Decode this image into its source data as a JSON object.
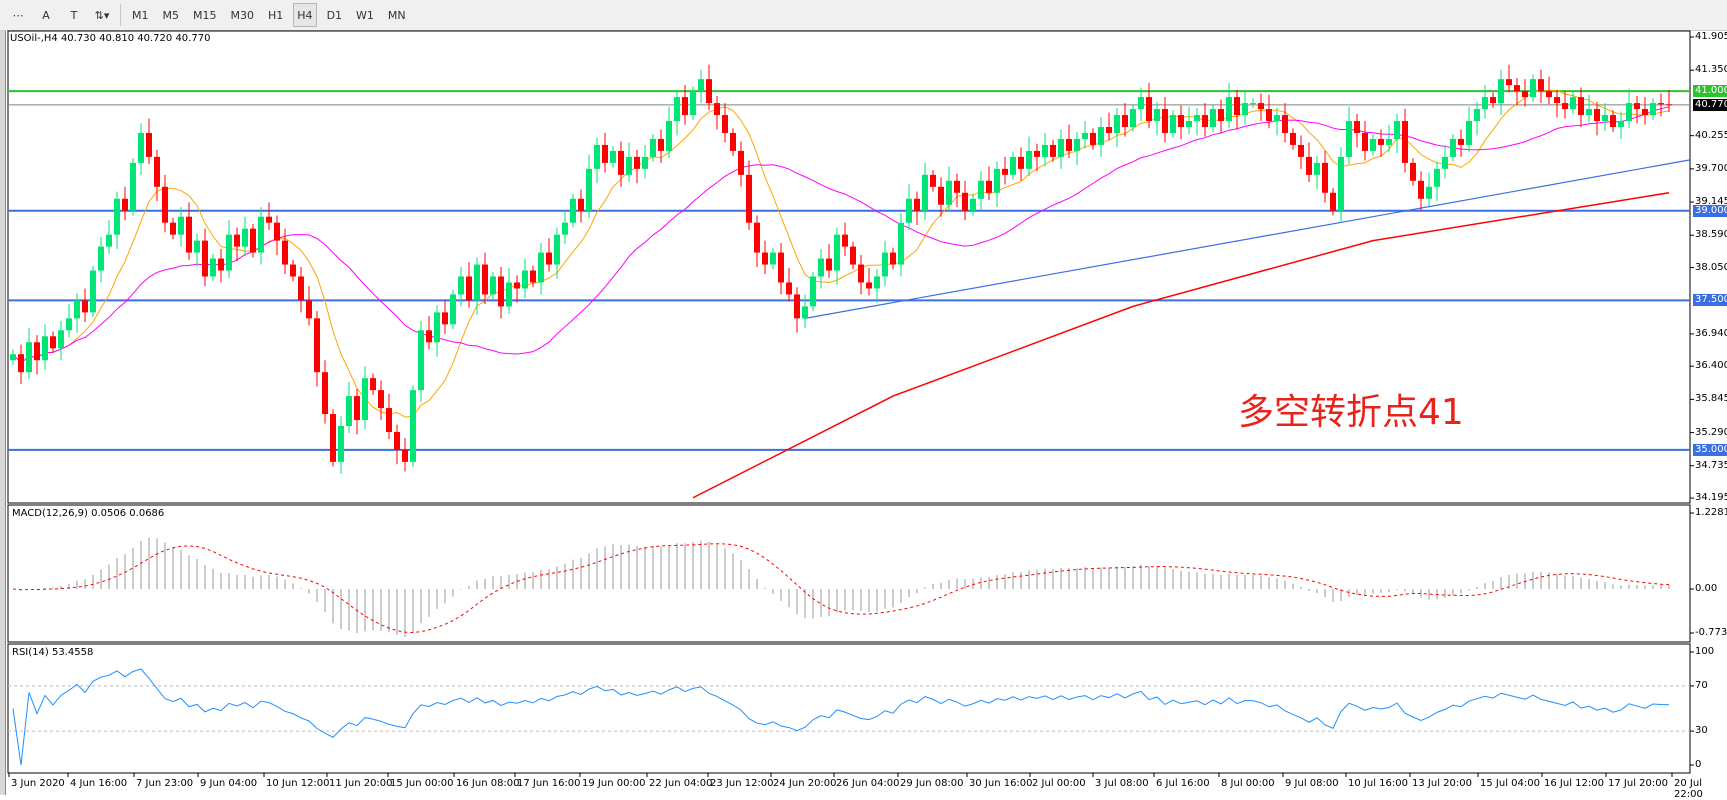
{
  "toolbar": {
    "tools": [
      {
        "name": "period-separators",
        "glyph": "⋯"
      },
      {
        "name": "text",
        "glyph": "A"
      },
      {
        "name": "text-label",
        "glyph": "T"
      },
      {
        "name": "arrows",
        "glyph": "⇅▾"
      }
    ],
    "timeframes": [
      "M1",
      "M5",
      "M15",
      "M30",
      "H1",
      "H4",
      "D1",
      "W1",
      "MN"
    ],
    "active_timeframe": "H4"
  },
  "chart": {
    "symbol_label": "USOil-,H4  40.730 40.810 40.720 40.770",
    "annotation": "多空转折点41",
    "annotation_color": "#e8231b",
    "bull_color": "#00e676",
    "bear_color": "#ff0000"
  },
  "chart_data": {
    "type": "candlestick",
    "price_axis": {
      "ticks": [
        "41.905",
        "41.350",
        "40.255",
        "39.700",
        "39.145",
        "38.590",
        "38.050",
        "36.940",
        "36.400",
        "35.845",
        "35.290",
        "34.735",
        "34.195"
      ],
      "ylim": [
        34.195,
        41.905
      ]
    },
    "time_axis": {
      "ticks": [
        "3 Jun 2020",
        "4 Jun 16:00",
        "7 Jun 23:00",
        "9 Jun 04:00",
        "10 Jun 12:00",
        "11 Jun 20:00",
        "15 Jun 00:00",
        "16 Jun 08:00",
        "17 Jun 16:00",
        "19 Jun 00:00",
        "22 Jun 04:00",
        "23 Jun 12:00",
        "24 Jun 20:00",
        "26 Jun 04:00",
        "29 Jun 08:00",
        "30 Jun 16:00",
        "2 Jul 00:00",
        "3 Jul 08:00",
        "6 Jul 16:00",
        "8 Jul 00:00",
        "9 Jul 08:00",
        "10 Jul 16:00",
        "13 Jul 20:00",
        "15 Jul 04:00",
        "16 Jul 12:00",
        "17 Jul 20:00",
        "20 Jul 22:00"
      ]
    },
    "closes": [
      36.6,
      36.3,
      36.8,
      36.5,
      36.9,
      36.7,
      37.0,
      37.2,
      37.5,
      37.3,
      38.0,
      38.4,
      38.6,
      39.2,
      39.0,
      39.8,
      40.3,
      39.9,
      39.4,
      38.8,
      38.6,
      38.9,
      38.3,
      38.5,
      37.9,
      38.2,
      38.0,
      38.6,
      38.4,
      38.7,
      38.3,
      38.9,
      38.8,
      38.5,
      38.1,
      37.9,
      37.5,
      37.2,
      36.3,
      35.6,
      34.8,
      35.4,
      35.9,
      35.5,
      36.2,
      36.0,
      35.7,
      35.3,
      35.0,
      34.8,
      36.0,
      37.0,
      36.8,
      37.3,
      37.1,
      37.6,
      37.9,
      37.5,
      38.1,
      37.6,
      37.9,
      37.4,
      37.8,
      37.7,
      38.0,
      37.8,
      38.3,
      38.1,
      38.6,
      38.8,
      39.2,
      39.0,
      39.7,
      40.1,
      39.8,
      40.0,
      39.6,
      39.9,
      39.7,
      39.9,
      40.2,
      40.0,
      40.5,
      40.9,
      40.6,
      41.0,
      41.2,
      40.8,
      40.6,
      40.3,
      40.0,
      39.6,
      38.8,
      38.3,
      38.1,
      38.3,
      37.8,
      37.6,
      37.2,
      37.4,
      37.9,
      38.2,
      38.0,
      38.6,
      38.4,
      38.1,
      37.8,
      37.7,
      37.9,
      38.3,
      38.1,
      38.8,
      39.2,
      39.0,
      39.6,
      39.4,
      39.1,
      39.5,
      39.3,
      39.0,
      39.2,
      39.5,
      39.3,
      39.7,
      39.6,
      39.9,
      39.7,
      40.0,
      39.9,
      40.1,
      39.9,
      40.2,
      40.0,
      40.2,
      40.3,
      40.1,
      40.4,
      40.3,
      40.6,
      40.4,
      40.7,
      40.9,
      40.5,
      40.7,
      40.3,
      40.6,
      40.4,
      40.5,
      40.6,
      40.4,
      40.7,
      40.5,
      40.9,
      40.6,
      40.8,
      40.8,
      40.7,
      40.5,
      40.6,
      40.3,
      40.1,
      39.9,
      39.6,
      39.8,
      39.3,
      39.0,
      39.9,
      40.5,
      40.3,
      40.0,
      40.2,
      40.1,
      40.2,
      40.5,
      39.8,
      39.5,
      39.2,
      39.4,
      39.7,
      39.9,
      40.2,
      40.1,
      40.5,
      40.7,
      40.9,
      40.8,
      41.2,
      41.1,
      41.0,
      40.9,
      41.2,
      41.0,
      40.9,
      40.8,
      40.7,
      40.9,
      40.6,
      40.7,
      40.5,
      40.6,
      40.4,
      40.5,
      40.8,
      40.7,
      40.6,
      40.8,
      40.78,
      40.77
    ],
    "horizontal_levels": [
      {
        "price": 41.0,
        "label": "41.000",
        "color": "#2fc02f"
      },
      {
        "price": 40.77,
        "label": "40.770",
        "color": "#808080",
        "label_bg": "#000000"
      },
      {
        "price": 39.0,
        "label": "39.000",
        "color": "#3a6fe0"
      },
      {
        "price": 37.5,
        "label": "37.500",
        "color": "#3a6fe0"
      },
      {
        "price": 35.0,
        "label": "35.000",
        "color": "#3a6fe0"
      }
    ],
    "trendline": {
      "from": [
        99,
        37.2
      ],
      "to": [
        214,
        39.85
      ],
      "color": "#3a6fe0"
    },
    "long_ma": {
      "points": [
        [
          85,
          34.2
        ],
        [
          110,
          35.9
        ],
        [
          140,
          37.4
        ],
        [
          170,
          38.5
        ],
        [
          207,
          39.3
        ]
      ],
      "color": "#ff0000"
    },
    "ma_fast_color": "#ffa500",
    "ma_mid_color": "#ff00ff",
    "macd": {
      "label": "MACD(12,26,9) 0.0506 0.0686",
      "ticks": [
        "1.2281",
        "0.00",
        "-0.7738"
      ],
      "ylim": [
        -0.7738,
        1.2281
      ]
    },
    "rsi": {
      "label": "RSI(14) 53.4558",
      "ticks": [
        "100",
        "70",
        "30",
        "0"
      ],
      "ylim": [
        0,
        100
      ],
      "color": "#1e90ff"
    }
  }
}
